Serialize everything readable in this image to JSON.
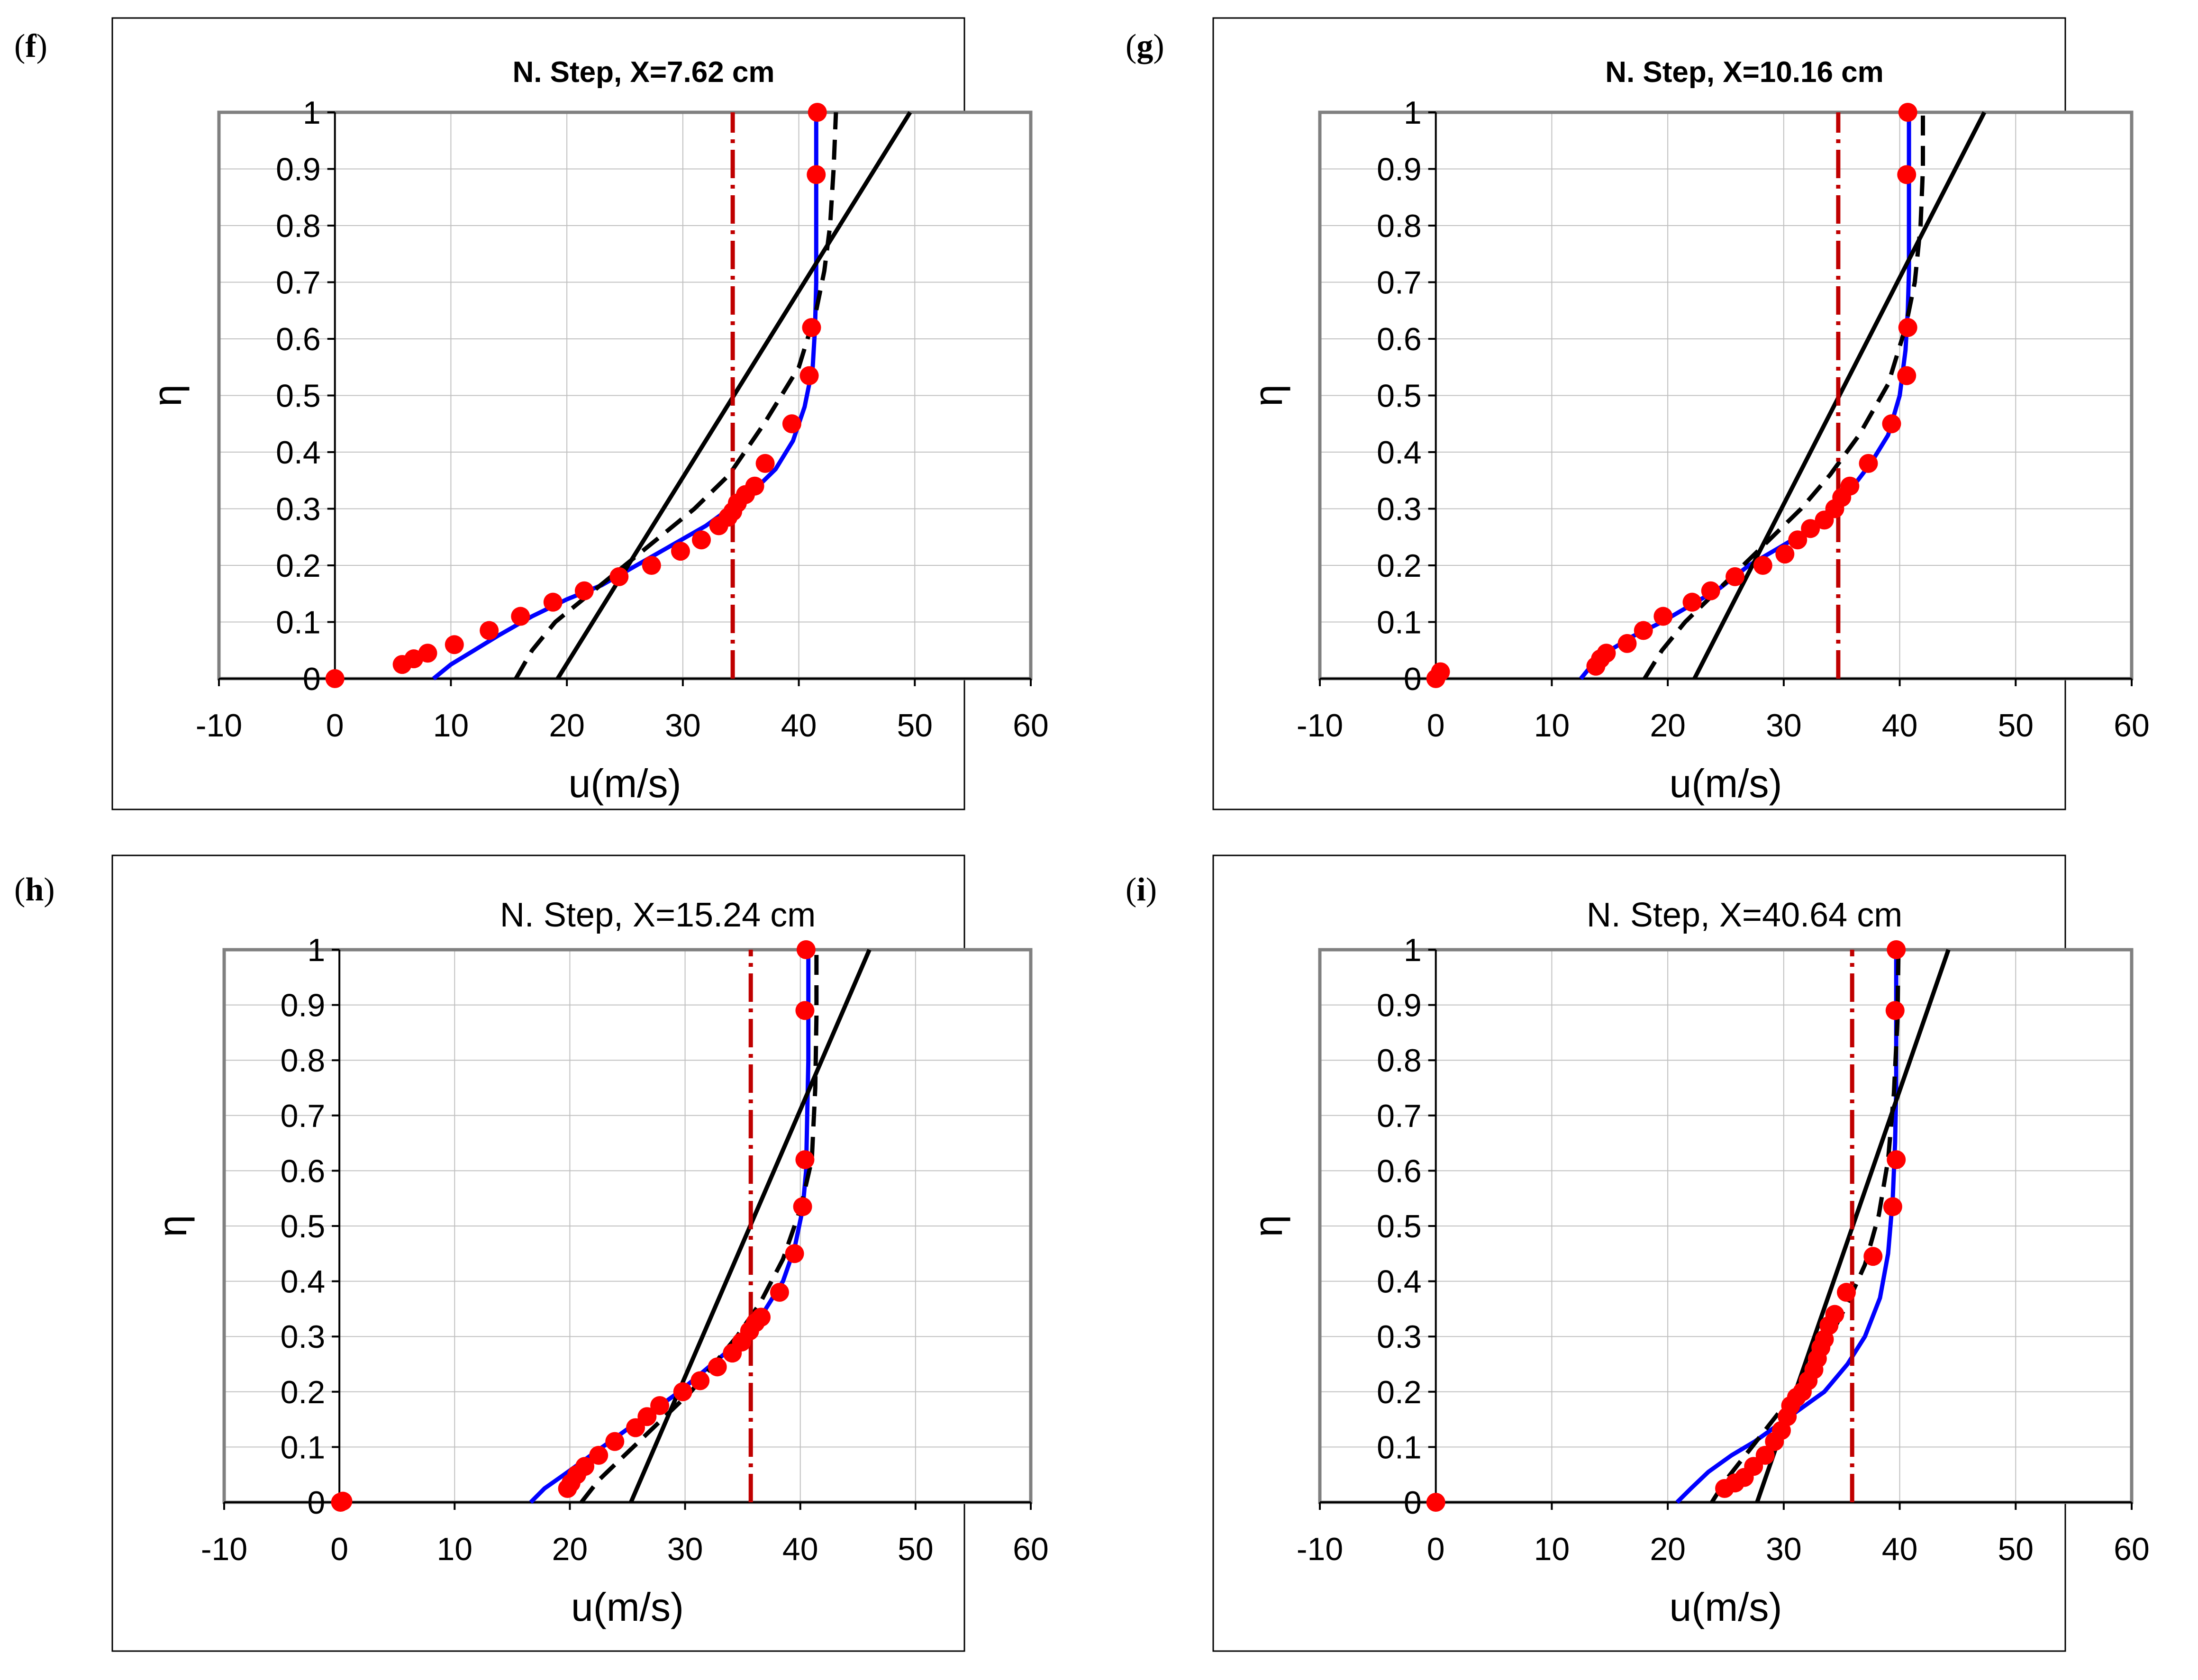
{
  "figure": {
    "panels_order": [
      "f",
      "g",
      "h",
      "i"
    ]
  },
  "chart_data": [
    {
      "panel": "f",
      "label_paren_open": "(",
      "label_letter": "f",
      "label_paren_close": ")",
      "type": "line",
      "title": "N. Step, X=7.62 cm",
      "title_weight": "bold",
      "xlabel": "u(m/s)",
      "ylabel": "η",
      "xlim": [
        -10,
        60
      ],
      "ylim": [
        0,
        1
      ],
      "xticks": [
        "-10",
        "0",
        "10",
        "20",
        "30",
        "40",
        "50",
        "60"
      ],
      "yticks": [
        "0",
        "0.1",
        "0.2",
        "0.3",
        "0.4",
        "0.5",
        "0.6",
        "0.7",
        "0.8",
        "0.9",
        "1"
      ],
      "grid": true,
      "colors": {
        "blue": "#0000ff",
        "black": "#000000",
        "red": "#ff0000",
        "darkred": "#c00000",
        "frame": "#808080",
        "grid": "#c0c0c0"
      },
      "series": [
        {
          "name": "blue curve",
          "style": "solid",
          "color": "#0000ff",
          "x": [
            8.5,
            10,
            12,
            14,
            17,
            20,
            23,
            26,
            29,
            32,
            34,
            36,
            38,
            39.5,
            40.5,
            41.2,
            41.4,
            41.5,
            41.5,
            41.5,
            41.5
          ],
          "y": [
            0,
            0.025,
            0.05,
            0.075,
            0.11,
            0.14,
            0.165,
            0.2,
            0.235,
            0.27,
            0.3,
            0.33,
            0.37,
            0.42,
            0.48,
            0.55,
            0.62,
            0.7,
            0.8,
            0.9,
            1.0
          ]
        },
        {
          "name": "black dashed",
          "style": "dashed",
          "color": "#000000",
          "x": [
            15.6,
            17,
            19,
            22,
            25,
            28,
            31,
            34,
            37,
            40,
            41.5,
            42.2,
            42.7,
            43,
            43.2
          ],
          "y": [
            0,
            0.05,
            0.1,
            0.15,
            0.2,
            0.25,
            0.3,
            0.36,
            0.45,
            0.55,
            0.65,
            0.72,
            0.8,
            0.9,
            1.0
          ]
        },
        {
          "name": "black solid",
          "style": "solid",
          "color": "#000000",
          "x": [
            19.2,
            49.6
          ],
          "y": [
            0,
            1
          ]
        },
        {
          "name": "red dash-dot",
          "style": "dashdot",
          "color": "#c00000",
          "x": [
            34.3,
            34.3
          ],
          "y": [
            0,
            1
          ]
        },
        {
          "name": "red markers",
          "style": "markers",
          "color": "#ff0000",
          "x": [
            0,
            5.8,
            6.8,
            8,
            10.3,
            13.3,
            16,
            18.8,
            21.5,
            24.5,
            27.3,
            29.8,
            31.6,
            33.1,
            33.9,
            34.3,
            34.7,
            35.4,
            36.2,
            37.1,
            39.4,
            40.9,
            41.1,
            41.5,
            41.6
          ],
          "y": [
            0,
            0.025,
            0.035,
            0.045,
            0.06,
            0.085,
            0.11,
            0.135,
            0.155,
            0.18,
            0.2,
            0.225,
            0.245,
            0.27,
            0.285,
            0.295,
            0.31,
            0.325,
            0.34,
            0.38,
            0.45,
            0.535,
            0.62,
            0.89,
            1.0
          ]
        }
      ]
    },
    {
      "panel": "g",
      "label_paren_open": "(",
      "label_letter": "g",
      "label_paren_close": ")",
      "type": "line",
      "title": "N. Step, X=10.16 cm",
      "title_weight": "bold",
      "xlabel": "u(m/s)",
      "ylabel": "η",
      "xlim": [
        -10,
        60
      ],
      "ylim": [
        0,
        1
      ],
      "xticks": [
        "-10",
        "0",
        "10",
        "20",
        "30",
        "40",
        "50",
        "60"
      ],
      "yticks": [
        "0",
        "0.1",
        "0.2",
        "0.3",
        "0.4",
        "0.5",
        "0.6",
        "0.7",
        "0.8",
        "0.9",
        "1"
      ],
      "grid": true,
      "colors": {
        "blue": "#0000ff",
        "black": "#000000",
        "red": "#ff0000",
        "darkred": "#c00000",
        "frame": "#808080",
        "grid": "#c0c0c0"
      },
      "series": [
        {
          "name": "blue curve",
          "style": "solid",
          "color": "#0000ff",
          "x": [
            12.5,
            13.5,
            15,
            17,
            19.5,
            22,
            24.5,
            27,
            29.5,
            32,
            34,
            36,
            37.5,
            39,
            40,
            40.5,
            40.7,
            40.8,
            40.8,
            40.8,
            40.8
          ],
          "y": [
            0,
            0.025,
            0.05,
            0.075,
            0.1,
            0.13,
            0.16,
            0.2,
            0.23,
            0.26,
            0.3,
            0.34,
            0.38,
            0.43,
            0.5,
            0.58,
            0.65,
            0.72,
            0.8,
            0.9,
            1.0
          ]
        },
        {
          "name": "black dashed",
          "style": "dashed",
          "color": "#000000",
          "x": [
            18,
            19.5,
            21.5,
            24,
            26.5,
            29,
            31.5,
            34,
            36.5,
            39,
            40.5,
            41.3,
            41.8,
            42,
            42
          ],
          "y": [
            0,
            0.05,
            0.1,
            0.15,
            0.2,
            0.25,
            0.3,
            0.36,
            0.43,
            0.52,
            0.62,
            0.7,
            0.8,
            0.9,
            1.0
          ]
        },
        {
          "name": "black solid",
          "style": "solid",
          "color": "#000000",
          "x": [
            22.3,
            47.3
          ],
          "y": [
            0,
            1
          ]
        },
        {
          "name": "red dash-dot",
          "style": "dashdot",
          "color": "#c00000",
          "x": [
            34.7,
            34.7
          ],
          "y": [
            0,
            1
          ]
        },
        {
          "name": "red markers",
          "style": "markers",
          "color": "#ff0000",
          "x": [
            0,
            0.4,
            13.8,
            14.2,
            14.7,
            16.5,
            17.9,
            19.6,
            22.1,
            23.7,
            25.8,
            28.2,
            30.1,
            31.2,
            32.3,
            33.5,
            34.4,
            35,
            35.7,
            37.3,
            39.3,
            40.6,
            40.7,
            40.6,
            40.7
          ],
          "y": [
            0,
            0.012,
            0.022,
            0.035,
            0.045,
            0.062,
            0.085,
            0.11,
            0.135,
            0.155,
            0.18,
            0.2,
            0.22,
            0.245,
            0.265,
            0.28,
            0.3,
            0.32,
            0.34,
            0.38,
            0.45,
            0.535,
            0.62,
            0.89,
            1.0
          ]
        }
      ]
    },
    {
      "panel": "h",
      "label_paren_open": "(",
      "label_letter": "h",
      "label_paren_close": ")",
      "type": "line",
      "title": "N. Step, X=15.24 cm",
      "title_weight": "normal",
      "xlabel": "u(m/s)",
      "ylabel": "η",
      "xlim": [
        -10,
        60
      ],
      "ylim": [
        0,
        1
      ],
      "xticks": [
        "-10",
        "0",
        "10",
        "20",
        "30",
        "40",
        "50",
        "60"
      ],
      "yticks": [
        "0",
        "0.1",
        "0.2",
        "0.3",
        "0.4",
        "0.5",
        "0.6",
        "0.7",
        "0.8",
        "0.9",
        "1"
      ],
      "grid": true,
      "colors": {
        "blue": "#0000ff",
        "black": "#000000",
        "red": "#ff0000",
        "darkred": "#c00000",
        "frame": "#808080",
        "grid": "#c0c0c0"
      },
      "series": [
        {
          "name": "blue curve",
          "style": "solid",
          "color": "#0000ff",
          "x": [
            16.6,
            17.8,
            19.5,
            21.5,
            23.5,
            25.5,
            27.5,
            29.5,
            31.5,
            33.5,
            35.5,
            37,
            38.5,
            39.5,
            40.2,
            40.5,
            40.6,
            40.7,
            40.7,
            40.7
          ],
          "y": [
            0,
            0.025,
            0.05,
            0.08,
            0.11,
            0.14,
            0.17,
            0.2,
            0.235,
            0.27,
            0.31,
            0.35,
            0.4,
            0.46,
            0.53,
            0.6,
            0.7,
            0.8,
            0.9,
            1.0
          ]
        },
        {
          "name": "black dashed",
          "style": "dashed",
          "color": "#000000",
          "x": [
            21,
            22.5,
            24.5,
            26.5,
            28.5,
            30.5,
            32.5,
            34.5,
            36.5,
            38.5,
            40,
            41,
            41.3,
            41.4,
            41.4
          ],
          "y": [
            0,
            0.04,
            0.08,
            0.12,
            0.16,
            0.2,
            0.25,
            0.3,
            0.36,
            0.44,
            0.53,
            0.62,
            0.75,
            0.88,
            1.0
          ]
        },
        {
          "name": "black solid",
          "style": "solid",
          "color": "#000000",
          "x": [
            25.3,
            46
          ],
          "y": [
            0,
            1
          ]
        },
        {
          "name": "red dash-dot",
          "style": "dashdot",
          "color": "#c00000",
          "x": [
            35.7,
            35.7
          ],
          "y": [
            0,
            1
          ]
        },
        {
          "name": "red markers",
          "style": "markers",
          "color": "#ff0000",
          "x": [
            0.1,
            0.3,
            19.8,
            20.1,
            20.6,
            21.3,
            22.5,
            23.9,
            25.7,
            26.7,
            27.8,
            29.8,
            31.3,
            32.8,
            34.1,
            34.9,
            35.6,
            36.1,
            36.6,
            38.2,
            39.5,
            40.2,
            40.4,
            40.4,
            40.5
          ],
          "y": [
            0,
            0.002,
            0.025,
            0.035,
            0.05,
            0.065,
            0.085,
            0.11,
            0.135,
            0.155,
            0.175,
            0.2,
            0.22,
            0.245,
            0.27,
            0.29,
            0.31,
            0.325,
            0.335,
            0.38,
            0.45,
            0.535,
            0.62,
            0.89,
            1.0
          ]
        }
      ]
    },
    {
      "panel": "i",
      "label_paren_open": "(",
      "label_letter": "i",
      "label_paren_close": ")",
      "type": "line",
      "title": "N. Step, X=40.64 cm",
      "title_weight": "normal",
      "xlabel": "u(m/s)",
      "ylabel": "η",
      "xlim": [
        -10,
        60
      ],
      "ylim": [
        0,
        1
      ],
      "xticks": [
        "-10",
        "0",
        "10",
        "20",
        "30",
        "40",
        "50",
        "60"
      ],
      "yticks": [
        "0",
        "0.1",
        "0.2",
        "0.3",
        "0.4",
        "0.5",
        "0.6",
        "0.7",
        "0.8",
        "0.9",
        "1"
      ],
      "grid": true,
      "colors": {
        "blue": "#0000ff",
        "black": "#000000",
        "red": "#ff0000",
        "darkred": "#c00000",
        "frame": "#808080",
        "grid": "#c0c0c0"
      },
      "series": [
        {
          "name": "blue curve",
          "style": "solid",
          "color": "#0000ff",
          "x": [
            20.8,
            22,
            23.5,
            25.5,
            27.5,
            29.5,
            31.5,
            33.5,
            35.5,
            37,
            38.3,
            39,
            39.4,
            39.6,
            39.7,
            39.7,
            39.7
          ],
          "y": [
            0,
            0.025,
            0.055,
            0.085,
            0.11,
            0.14,
            0.17,
            0.2,
            0.25,
            0.3,
            0.37,
            0.45,
            0.55,
            0.65,
            0.75,
            0.88,
            1.0
          ]
        },
        {
          "name": "black dashed",
          "style": "dashed",
          "color": "#000000",
          "x": [
            23.8,
            25,
            26.5,
            28,
            29.5,
            31,
            32.5,
            34,
            35.5,
            37,
            38.2,
            39,
            39.5,
            39.8,
            39.9
          ],
          "y": [
            0,
            0.04,
            0.08,
            0.12,
            0.16,
            0.2,
            0.25,
            0.3,
            0.36,
            0.43,
            0.52,
            0.62,
            0.74,
            0.87,
            1.0
          ]
        },
        {
          "name": "black solid",
          "style": "solid",
          "color": "#000000",
          "x": [
            27.7,
            44.2
          ],
          "y": [
            0,
            1
          ]
        },
        {
          "name": "red dash-dot",
          "style": "dashdot",
          "color": "#c00000",
          "x": [
            35.9,
            35.9
          ],
          "y": [
            0,
            1
          ]
        },
        {
          "name": "red markers",
          "style": "markers",
          "color": "#ff0000",
          "x": [
            0,
            24.9,
            25.8,
            26.6,
            27.4,
            28.4,
            29.2,
            29.8,
            30.3,
            30.6,
            31.1,
            31.6,
            32.1,
            32.6,
            32.9,
            33.2,
            33.5,
            33.9,
            34.4,
            35.4,
            37.7,
            39.4,
            39.7,
            39.6,
            39.7
          ],
          "y": [
            0,
            0.025,
            0.035,
            0.045,
            0.065,
            0.085,
            0.11,
            0.13,
            0.155,
            0.175,
            0.19,
            0.2,
            0.22,
            0.24,
            0.26,
            0.28,
            0.295,
            0.32,
            0.34,
            0.38,
            0.445,
            0.535,
            0.62,
            0.89,
            1.0
          ]
        }
      ]
    }
  ]
}
